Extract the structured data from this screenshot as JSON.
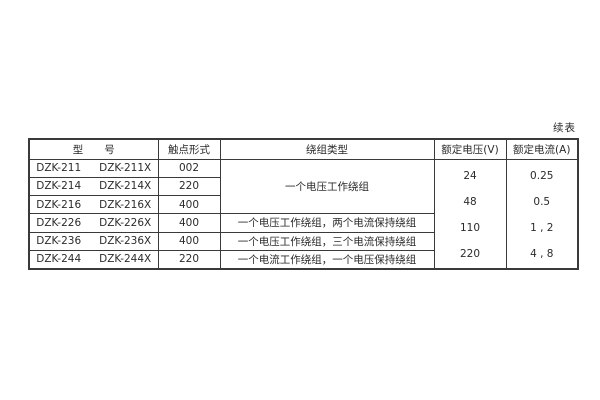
{
  "page": {
    "continued_label": "续表"
  },
  "colors": {
    "background": "#ffffff",
    "border": "#3a3a3a",
    "text": "#2b2b2b"
  },
  "table": {
    "headers": {
      "model": "型　　号",
      "contact": "触点形式",
      "winding": "绕组类型",
      "voltage": "额定电压(V)",
      "current": "额定电流(A)"
    },
    "merged_winding_rows_1_3": "一个电压工作绕组",
    "rows": [
      {
        "model_a": "DZK-211",
        "model_b": "DZK-211X",
        "contact": "002",
        "winding": ""
      },
      {
        "model_a": "DZK-214",
        "model_b": "DZK-214X",
        "contact": "220",
        "winding": ""
      },
      {
        "model_a": "DZK-216",
        "model_b": "DZK-216X",
        "contact": "400",
        "winding": ""
      },
      {
        "model_a": "DZK-226",
        "model_b": "DZK-226X",
        "contact": "400",
        "winding": "一个电压工作绕组，两个电流保持绕组"
      },
      {
        "model_a": "DZK-236",
        "model_b": "DZK-236X",
        "contact": "400",
        "winding": "一个电压工作绕组，三个电流保持绕组"
      },
      {
        "model_a": "DZK-244",
        "model_b": "DZK-244X",
        "contact": "220",
        "winding": "一个电流工作绕组，一个电压保持绕组"
      }
    ],
    "rated_voltages": [
      "24",
      "48",
      "110",
      "220"
    ],
    "rated_currents": [
      "0.25",
      "0.5",
      "1 , 2",
      "4 , 8"
    ]
  }
}
